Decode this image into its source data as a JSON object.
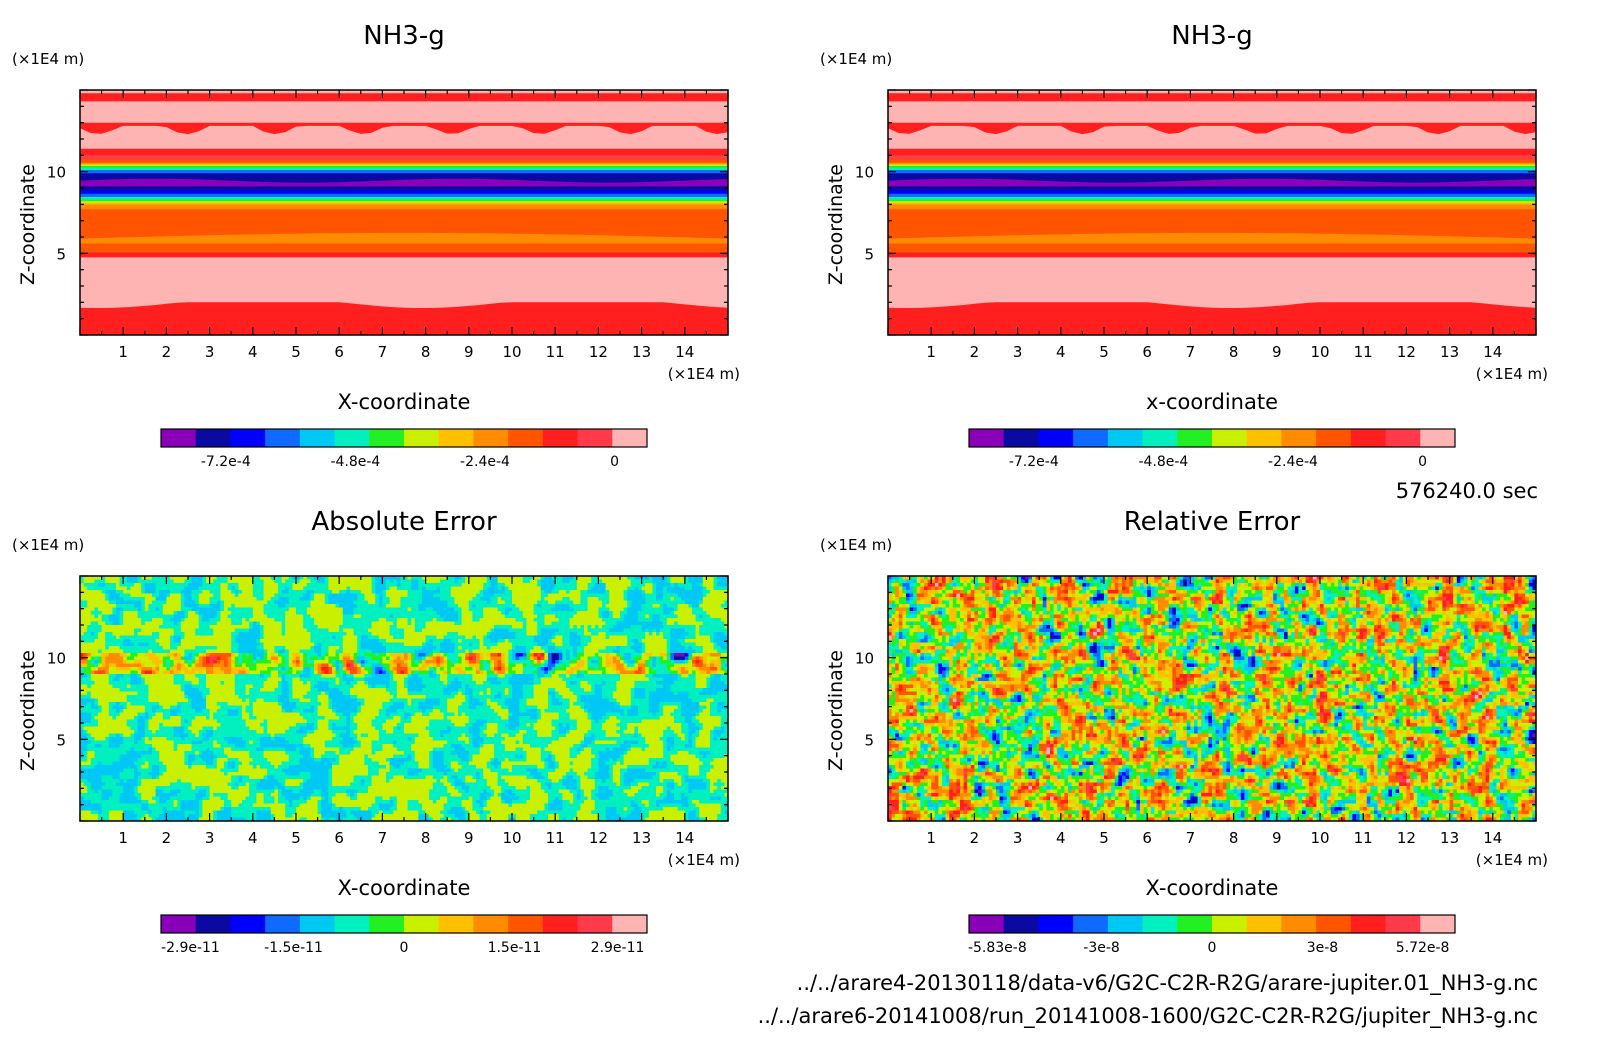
{
  "figure": {
    "time_label": "576240.0 sec",
    "file_1": "../../arare4-20130118/data-v6/G2C-C2R-R2G/arare-jupiter.01_NH3-g.nc",
    "file_2": "../../arare6-20141008/run_20141008-1600/G2C-C2R-R2G/jupiter_NH3-g.nc"
  },
  "palette": [
    "#8a00b8",
    "#0a0aa3",
    "#0000ff",
    "#0f6bff",
    "#00c8f5",
    "#00f0c0",
    "#22f022",
    "#c8f000",
    "#ffc000",
    "#ff8c00",
    "#ff5500",
    "#ff1f1f",
    "#ff3b4b",
    "#ffb4b4"
  ],
  "chart_data": [
    {
      "type": "heatmap",
      "title": "NH3-g",
      "xlabel": "X-coordinate",
      "ylabel": "Z-coordinate",
      "x_unit": "(×1E4 m)",
      "y_unit": "(×1E4 m)",
      "xlim": [
        0,
        15
      ],
      "ylim": [
        0,
        15
      ],
      "x_ticks": [
        "1",
        "2",
        "3",
        "4",
        "5",
        "6",
        "7",
        "8",
        "9",
        "10",
        "11",
        "12",
        "13",
        "14"
      ],
      "y_ticks": [
        "5",
        "10"
      ],
      "colorbar": {
        "range": [
          -0.00084,
          6e-05
        ],
        "labels": [
          "-7.2e-4",
          "-4.8e-4",
          "-2.4e-4",
          "0"
        ]
      }
    },
    {
      "type": "heatmap",
      "title": "NH3-g",
      "xlabel": "x-coordinate",
      "ylabel": "Z-coordinate",
      "x_unit": "(×1E4 m)",
      "y_unit": "(×1E4 m)",
      "xlim": [
        0,
        15
      ],
      "ylim": [
        0,
        15
      ],
      "x_ticks": [
        "1",
        "2",
        "3",
        "4",
        "5",
        "6",
        "7",
        "8",
        "9",
        "10",
        "11",
        "12",
        "13",
        "14"
      ],
      "y_ticks": [
        "5",
        "10"
      ],
      "colorbar": {
        "range": [
          -0.00084,
          6e-05
        ],
        "labels": [
          "-7.2e-4",
          "-4.8e-4",
          "-2.4e-4",
          "0"
        ]
      }
    },
    {
      "type": "heatmap",
      "title": "Absolute Error",
      "xlabel": "X-coordinate",
      "ylabel": "Z-coordinate",
      "x_unit": "(×1E4 m)",
      "y_unit": "(×1E4 m)",
      "xlim": [
        0,
        15
      ],
      "ylim": [
        0,
        15
      ],
      "x_ticks": [
        "1",
        "2",
        "3",
        "4",
        "5",
        "6",
        "7",
        "8",
        "9",
        "10",
        "11",
        "12",
        "13",
        "14"
      ],
      "y_ticks": [
        "5",
        "10"
      ],
      "colorbar": {
        "range": [
          -3.3e-11,
          3.3e-11
        ],
        "labels": [
          "-2.9e-11",
          "-1.5e-11",
          "0",
          "1.5e-11",
          "2.9e-11"
        ]
      }
    },
    {
      "type": "heatmap",
      "title": "Relative Error",
      "xlabel": "X-coordinate",
      "ylabel": "Z-coordinate",
      "x_unit": "(×1E4 m)",
      "y_unit": "(×1E4 m)",
      "xlim": [
        0,
        15
      ],
      "ylim": [
        0,
        15
      ],
      "x_ticks": [
        "1",
        "2",
        "3",
        "4",
        "5",
        "6",
        "7",
        "8",
        "9",
        "10",
        "11",
        "12",
        "13",
        "14"
      ],
      "y_ticks": [
        "5",
        "10"
      ],
      "colorbar": {
        "range": [
          -6.6e-08,
          6.6e-08
        ],
        "labels": [
          "-5.83e-8",
          "-3e-8",
          "0",
          "3e-8",
          "5.72e-8"
        ]
      }
    }
  ]
}
